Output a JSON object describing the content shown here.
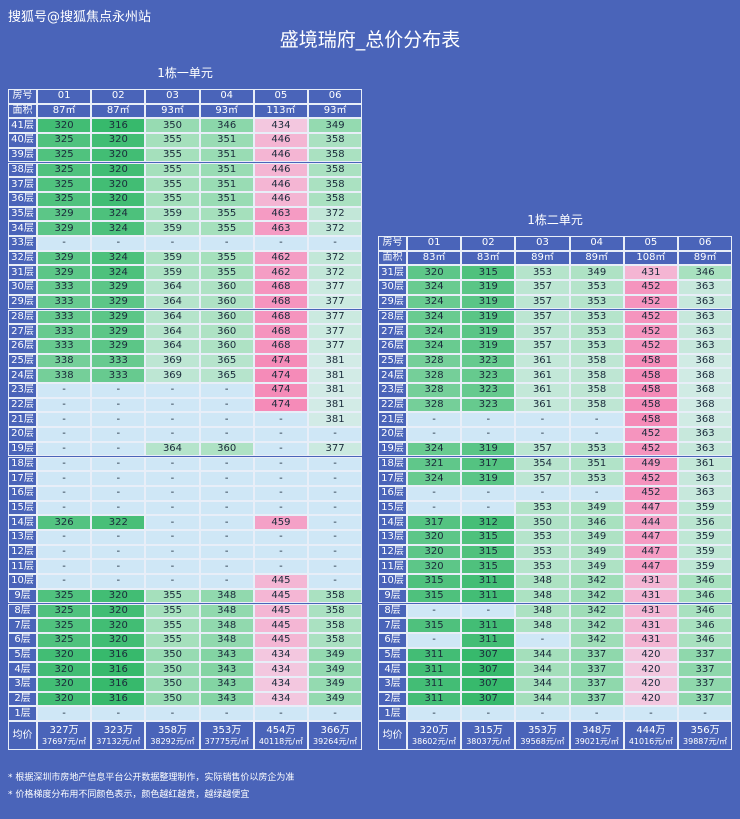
{
  "watermark": "搜狐号@搜狐焦点永州站",
  "title": "盛境瑞府_总价分布表",
  "tables": [
    {
      "caption": "1栋一单元",
      "header": [
        "房号",
        "01",
        "02",
        "03",
        "04",
        "05",
        "06"
      ],
      "area": [
        "面积",
        "87㎡",
        "87㎡",
        "93㎡",
        "93㎡",
        "113㎡",
        "93㎡"
      ],
      "rows": [
        [
          "41层",
          "320",
          "316",
          "350",
          "346",
          "434",
          "349"
        ],
        [
          "40层",
          "325",
          "320",
          "355",
          "351",
          "446",
          "358"
        ],
        [
          "39层",
          "325",
          "320",
          "355",
          "351",
          "446",
          "358"
        ],
        [
          "38层",
          "325",
          "320",
          "355",
          "351",
          "446",
          "358"
        ],
        [
          "37层",
          "325",
          "320",
          "355",
          "351",
          "446",
          "358"
        ],
        [
          "36层",
          "325",
          "320",
          "355",
          "351",
          "446",
          "358"
        ],
        [
          "35层",
          "329",
          "324",
          "359",
          "355",
          "463",
          "372"
        ],
        [
          "34层",
          "329",
          "324",
          "359",
          "355",
          "463",
          "372"
        ],
        [
          "33层",
          "-",
          "-",
          "-",
          "-",
          "-",
          "-"
        ],
        [
          "32层",
          "329",
          "324",
          "359",
          "355",
          "462",
          "372"
        ],
        [
          "31层",
          "329",
          "324",
          "359",
          "355",
          "462",
          "372"
        ],
        [
          "30层",
          "333",
          "329",
          "364",
          "360",
          "468",
          "377"
        ],
        [
          "29层",
          "333",
          "329",
          "364",
          "360",
          "468",
          "377"
        ],
        [
          "28层",
          "333",
          "329",
          "364",
          "360",
          "468",
          "377"
        ],
        [
          "27层",
          "333",
          "329",
          "364",
          "360",
          "468",
          "377"
        ],
        [
          "26层",
          "333",
          "329",
          "364",
          "360",
          "468",
          "377"
        ],
        [
          "25层",
          "338",
          "333",
          "369",
          "365",
          "474",
          "381"
        ],
        [
          "24层",
          "338",
          "333",
          "369",
          "365",
          "474",
          "381"
        ],
        [
          "23层",
          "-",
          "-",
          "-",
          "-",
          "474",
          "381"
        ],
        [
          "22层",
          "-",
          "-",
          "-",
          "-",
          "474",
          "381"
        ],
        [
          "21层",
          "-",
          "-",
          "-",
          "-",
          "-",
          "381"
        ],
        [
          "20层",
          "-",
          "-",
          "-",
          "-",
          "-",
          "-"
        ],
        [
          "19层",
          "-",
          "-",
          "364",
          "360",
          "-",
          "377"
        ],
        [
          "18层",
          "-",
          "-",
          "-",
          "-",
          "-",
          "-"
        ],
        [
          "17层",
          "-",
          "-",
          "-",
          "-",
          "-",
          "-"
        ],
        [
          "16层",
          "-",
          "-",
          "-",
          "-",
          "-",
          "-"
        ],
        [
          "15层",
          "-",
          "-",
          "-",
          "-",
          "-",
          "-"
        ],
        [
          "14层",
          "326",
          "322",
          "-",
          "-",
          "459",
          "-"
        ],
        [
          "13层",
          "-",
          "-",
          "-",
          "-",
          "-",
          "-"
        ],
        [
          "12层",
          "-",
          "-",
          "-",
          "-",
          "-",
          "-"
        ],
        [
          "11层",
          "-",
          "-",
          "-",
          "-",
          "-",
          "-"
        ],
        [
          "10层",
          "-",
          "-",
          "-",
          "-",
          "445",
          "-"
        ],
        [
          "9层",
          "325",
          "320",
          "355",
          "348",
          "445",
          "358"
        ],
        [
          "8层",
          "325",
          "320",
          "355",
          "348",
          "445",
          "358"
        ],
        [
          "7层",
          "325",
          "320",
          "355",
          "348",
          "445",
          "358"
        ],
        [
          "6层",
          "325",
          "320",
          "355",
          "348",
          "445",
          "358"
        ],
        [
          "5层",
          "320",
          "316",
          "350",
          "343",
          "434",
          "349"
        ],
        [
          "4层",
          "320",
          "316",
          "350",
          "343",
          "434",
          "349"
        ],
        [
          "3层",
          "320",
          "316",
          "350",
          "343",
          "434",
          "349"
        ],
        [
          "2层",
          "320",
          "316",
          "350",
          "343",
          "434",
          "349"
        ],
        [
          "1层",
          "-",
          "-",
          "-",
          "-",
          "-",
          "-"
        ]
      ],
      "average": {
        "label": "均价",
        "totals": [
          "327万",
          "323万",
          "358万",
          "353万",
          "454万",
          "366万"
        ],
        "unit_prices": [
          "37697元/㎡",
          "37132元/㎡",
          "38292元/㎡",
          "37775元/㎡",
          "40118元/㎡",
          "39264元/㎡"
        ]
      }
    },
    {
      "caption": "1栋二单元",
      "header": [
        "房号",
        "01",
        "02",
        "03",
        "04",
        "05",
        "06"
      ],
      "area": [
        "面积",
        "83㎡",
        "83㎡",
        "89㎡",
        "89㎡",
        "108㎡",
        "89㎡"
      ],
      "rows": [
        [
          "31层",
          "320",
          "315",
          "353",
          "349",
          "431",
          "346"
        ],
        [
          "30层",
          "324",
          "319",
          "357",
          "353",
          "452",
          "363"
        ],
        [
          "29层",
          "324",
          "319",
          "357",
          "353",
          "452",
          "363"
        ],
        [
          "28层",
          "324",
          "319",
          "357",
          "353",
          "452",
          "363"
        ],
        [
          "27层",
          "324",
          "319",
          "357",
          "353",
          "452",
          "363"
        ],
        [
          "26层",
          "324",
          "319",
          "357",
          "353",
          "452",
          "363"
        ],
        [
          "25层",
          "328",
          "323",
          "361",
          "358",
          "458",
          "368"
        ],
        [
          "24层",
          "328",
          "323",
          "361",
          "358",
          "458",
          "368"
        ],
        [
          "23层",
          "328",
          "323",
          "361",
          "358",
          "458",
          "368"
        ],
        [
          "22层",
          "328",
          "323",
          "361",
          "358",
          "458",
          "368"
        ],
        [
          "21层",
          "-",
          "-",
          "-",
          "-",
          "458",
          "368"
        ],
        [
          "20层",
          "-",
          "-",
          "-",
          "-",
          "452",
          "363"
        ],
        [
          "19层",
          "324",
          "319",
          "357",
          "353",
          "452",
          "363"
        ],
        [
          "18层",
          "321",
          "317",
          "354",
          "351",
          "449",
          "361"
        ],
        [
          "17层",
          "324",
          "319",
          "357",
          "353",
          "452",
          "363"
        ],
        [
          "16层",
          "-",
          "-",
          "-",
          "-",
          "452",
          "363"
        ],
        [
          "15层",
          "-",
          "-",
          "353",
          "349",
          "447",
          "359"
        ],
        [
          "14层",
          "317",
          "312",
          "350",
          "346",
          "444",
          "356"
        ],
        [
          "13层",
          "320",
          "315",
          "353",
          "349",
          "447",
          "359"
        ],
        [
          "12层",
          "320",
          "315",
          "353",
          "349",
          "447",
          "359"
        ],
        [
          "11层",
          "320",
          "315",
          "353",
          "349",
          "447",
          "359"
        ],
        [
          "10层",
          "315",
          "311",
          "348",
          "342",
          "431",
          "346"
        ],
        [
          "9层",
          "315",
          "311",
          "348",
          "342",
          "431",
          "346"
        ],
        [
          "8层",
          "-",
          "-",
          "348",
          "342",
          "431",
          "346"
        ],
        [
          "7层",
          "315",
          "311",
          "348",
          "342",
          "431",
          "346"
        ],
        [
          "6层",
          "-",
          "311",
          "-",
          "342",
          "431",
          "346"
        ],
        [
          "5层",
          "311",
          "307",
          "344",
          "337",
          "420",
          "337"
        ],
        [
          "4层",
          "311",
          "307",
          "344",
          "337",
          "420",
          "337"
        ],
        [
          "3层",
          "311",
          "307",
          "344",
          "337",
          "420",
          "337"
        ],
        [
          "2层",
          "311",
          "307",
          "344",
          "337",
          "420",
          "337"
        ],
        [
          "1层",
          "-",
          "-",
          "-",
          "-",
          "-",
          "-"
        ]
      ],
      "average": {
        "label": "均价",
        "totals": [
          "320万",
          "315万",
          "353万",
          "348万",
          "444万",
          "356万"
        ],
        "unit_prices": [
          "38602元/㎡",
          "38037元/㎡",
          "39568元/㎡",
          "39021元/㎡",
          "41016元/㎡",
          "39887元/㎡"
        ]
      }
    }
  ],
  "notes": [
    "* 根据深圳市房地产信息平台公开数据整理制作，实际销售价以房企为准",
    "* 价格梯度分布用不同颜色表示，颜色越红越贵，越绿越便宜"
  ]
}
